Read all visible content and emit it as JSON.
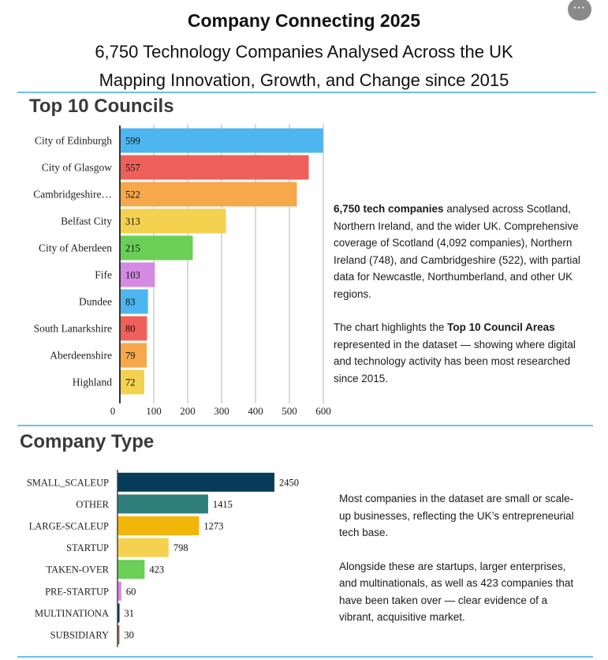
{
  "header": {
    "title": "Company Connecting  2025",
    "subtitle_1": "6,750 Technology Companies Analysed Across the UK",
    "subtitle_2": "Mapping Innovation, Growth, and Change since 2015",
    "menu_icon": "more-horizontal-icon",
    "menu_label": "···"
  },
  "councils": {
    "heading": "Top 10 Councils",
    "desc_p1_bold": "6,750 tech companies",
    "desc_p1_rest": " analysed across Scotland, Northern Ireland, and the wider UK. Comprehensive coverage of Scotland (4,092 companies), Northern Ireland (748), and Cambridgeshire (522), with partial data for Newcastle, Northumberland, and other UK regions.",
    "desc_p2_pre": "The chart highlights the ",
    "desc_p2_bold": "Top 10 Council Areas",
    "desc_p2_post": " represented in the dataset — showing where digital and technology activity has been most researched since 2015."
  },
  "types": {
    "heading": "Company Type",
    "desc_p1": "Most companies in the dataset are small or scale-up businesses, reflecting the UK’s entrepreneurial tech base.",
    "desc_p2": "Alongside these are startups, larger enterprises, and multinationals, as well as 423 companies that have been taken over — clear evidence of a vibrant, acquisitive market."
  },
  "chart_data": [
    {
      "type": "bar",
      "orientation": "horizontal",
      "title": "Top 10 Councils",
      "categories": [
        "City of Edinburgh",
        "City of Glasgow",
        "Cambridgeshire…",
        "Belfast City",
        "City of Aberdeen",
        "Fife",
        "Dundee",
        "South Lanarkshire",
        "Aberdeenshire",
        "Highland"
      ],
      "values": [
        599,
        557,
        522,
        313,
        215,
        103,
        83,
        80,
        79,
        72
      ],
      "colors": [
        "#4db6f0",
        "#f0605a",
        "#f6a84a",
        "#f5d150",
        "#6bcf57",
        "#d48ae2",
        "#4db6f0",
        "#f0605a",
        "#f6a84a",
        "#f5d150"
      ],
      "xticks": [
        0,
        100,
        200,
        300,
        400,
        500,
        600
      ],
      "xlim": [
        0,
        600
      ],
      "grid": true
    },
    {
      "type": "bar",
      "orientation": "horizontal",
      "title": "Company Type",
      "categories": [
        "SMALL_SCALEUP",
        "OTHER",
        "LARGE-SCALEUP",
        "STARTUP",
        "TAKEN-OVER",
        "PRE-STARTUP",
        "MULTINATIONA",
        "SUBSIDIARY"
      ],
      "values": [
        2450,
        1415,
        1273,
        798,
        423,
        60,
        31,
        30
      ],
      "colors": [
        "#073b5a",
        "#2e7e7a",
        "#f2b50a",
        "#f5d150",
        "#6bcf57",
        "#d48ae2",
        "#0a3050",
        "#8b6a55"
      ],
      "xlim": [
        0,
        2450
      ],
      "grid": false
    }
  ]
}
